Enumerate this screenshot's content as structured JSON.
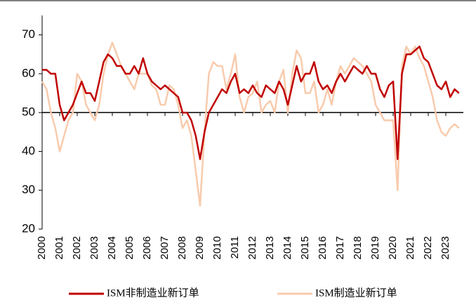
{
  "chart_data": {
    "type": "line",
    "x": [
      2000,
      2000.25,
      2000.5,
      2000.75,
      2001,
      2001.25,
      2001.5,
      2001.75,
      2002,
      2002.25,
      2002.5,
      2002.75,
      2003,
      2003.25,
      2003.5,
      2003.75,
      2004,
      2004.25,
      2004.5,
      2004.75,
      2005,
      2005.25,
      2005.5,
      2005.75,
      2006,
      2006.25,
      2006.5,
      2006.75,
      2007,
      2007.25,
      2007.5,
      2007.75,
      2008,
      2008.25,
      2008.5,
      2008.75,
      2009,
      2009.25,
      2009.5,
      2009.75,
      2010,
      2010.25,
      2010.5,
      2010.75,
      2011,
      2011.25,
      2011.5,
      2011.75,
      2012,
      2012.25,
      2012.5,
      2012.75,
      2013,
      2013.25,
      2013.5,
      2013.75,
      2014,
      2014.25,
      2014.5,
      2014.75,
      2015,
      2015.25,
      2015.5,
      2015.75,
      2016,
      2016.25,
      2016.5,
      2016.75,
      2017,
      2017.25,
      2017.5,
      2017.75,
      2018,
      2018.25,
      2018.5,
      2018.75,
      2019,
      2019.25,
      2019.5,
      2019.75,
      2020,
      2020.25,
      2020.5,
      2020.75,
      2021,
      2021.25,
      2021.5,
      2021.75,
      2022,
      2022.25,
      2022.5,
      2022.75,
      2023,
      2023.25,
      2023.5,
      2023.75
    ],
    "series": [
      {
        "name": "ISM非制造业新订单",
        "color": "#c00000",
        "values": [
          61,
          61,
          60,
          60,
          52,
          48,
          50,
          52,
          55,
          58,
          55,
          55,
          53,
          58,
          63,
          65,
          64,
          62,
          62,
          60,
          60,
          62,
          60,
          64,
          60,
          58,
          57,
          56,
          57,
          56,
          55,
          54,
          50,
          50,
          48,
          44,
          38,
          45,
          50,
          52,
          54,
          56,
          55,
          58,
          60,
          55,
          56,
          55,
          57,
          55,
          54,
          57,
          56,
          55,
          58,
          56,
          52,
          57,
          62,
          58,
          60,
          60,
          63,
          58,
          56,
          57,
          55,
          58,
          60,
          58,
          60,
          62,
          61,
          60,
          62,
          60,
          60,
          56,
          54,
          57,
          58,
          38,
          60,
          65,
          65,
          66,
          67,
          64,
          63,
          60,
          57,
          56,
          58,
          54,
          56,
          55
        ]
      },
      {
        "name": "ISM制造业新订单",
        "color": "#f8cbad",
        "values": [
          58,
          56,
          50,
          46,
          40,
          44,
          48,
          50,
          60,
          58,
          52,
          50,
          48,
          52,
          60,
          65,
          68,
          65,
          62,
          60,
          58,
          56,
          60,
          60,
          60,
          57,
          56,
          52,
          52,
          57,
          56,
          52,
          46,
          48,
          44,
          35,
          26,
          45,
          60,
          63,
          62,
          62,
          56,
          60,
          65,
          54,
          50,
          54,
          55,
          58,
          50,
          52,
          53,
          50,
          58,
          61,
          50,
          60,
          66,
          64,
          55,
          55,
          58,
          50,
          52,
          56,
          52,
          58,
          62,
          60,
          62,
          64,
          63,
          62,
          60,
          58,
          52,
          50,
          48,
          48,
          48,
          30,
          62,
          67,
          65,
          67,
          64,
          62,
          58,
          54,
          48,
          45,
          44,
          46,
          47,
          46
        ]
      }
    ],
    "xlim": [
      2000,
      2024
    ],
    "xticks": [
      2000,
      2001,
      2002,
      2003,
      2004,
      2005,
      2006,
      2007,
      2008,
      2009,
      2010,
      2011,
      2012,
      2013,
      2014,
      2015,
      2016,
      2017,
      2018,
      2019,
      2020,
      2021,
      2022,
      2023
    ],
    "ylim": [
      20,
      75
    ],
    "yticks": [
      20,
      30,
      40,
      50,
      60,
      70
    ],
    "x_axis_crossing": 50
  }
}
